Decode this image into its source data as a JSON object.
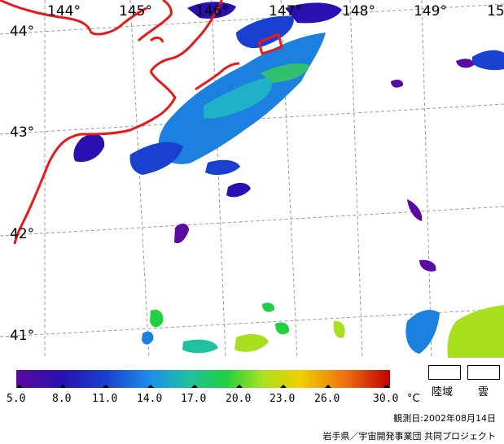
{
  "map": {
    "longitude_labels": [
      "144°",
      "145°",
      "146°",
      "147°",
      "148°",
      "149°",
      "15"
    ],
    "latitude_labels": [
      "44°",
      "43°",
      "42°",
      "41°"
    ],
    "colors": {
      "coastline": "#e41a1c",
      "graticule": "#9a9a9a",
      "background": "#ffffff"
    }
  },
  "colorbar": {
    "unit": "°C",
    "tick_labels": [
      "5.0",
      "8.0",
      "11.0",
      "14.0",
      "17.0",
      "20.0",
      "23.0",
      "26.0",
      "30.0"
    ],
    "colors": [
      "#5a0aa0",
      "#1a1aa8",
      "#1860e0",
      "#20b8b8",
      "#20d040",
      "#a8e020",
      "#f0d000",
      "#f07010",
      "#c00000"
    ]
  },
  "legend_boxes": {
    "land_label": "陸域",
    "cloud_label": "雲"
  },
  "observation_date": "観測日:2002年08月14日",
  "credit": "岩手県／宇宙開発事業団  共同プロジェクト"
}
